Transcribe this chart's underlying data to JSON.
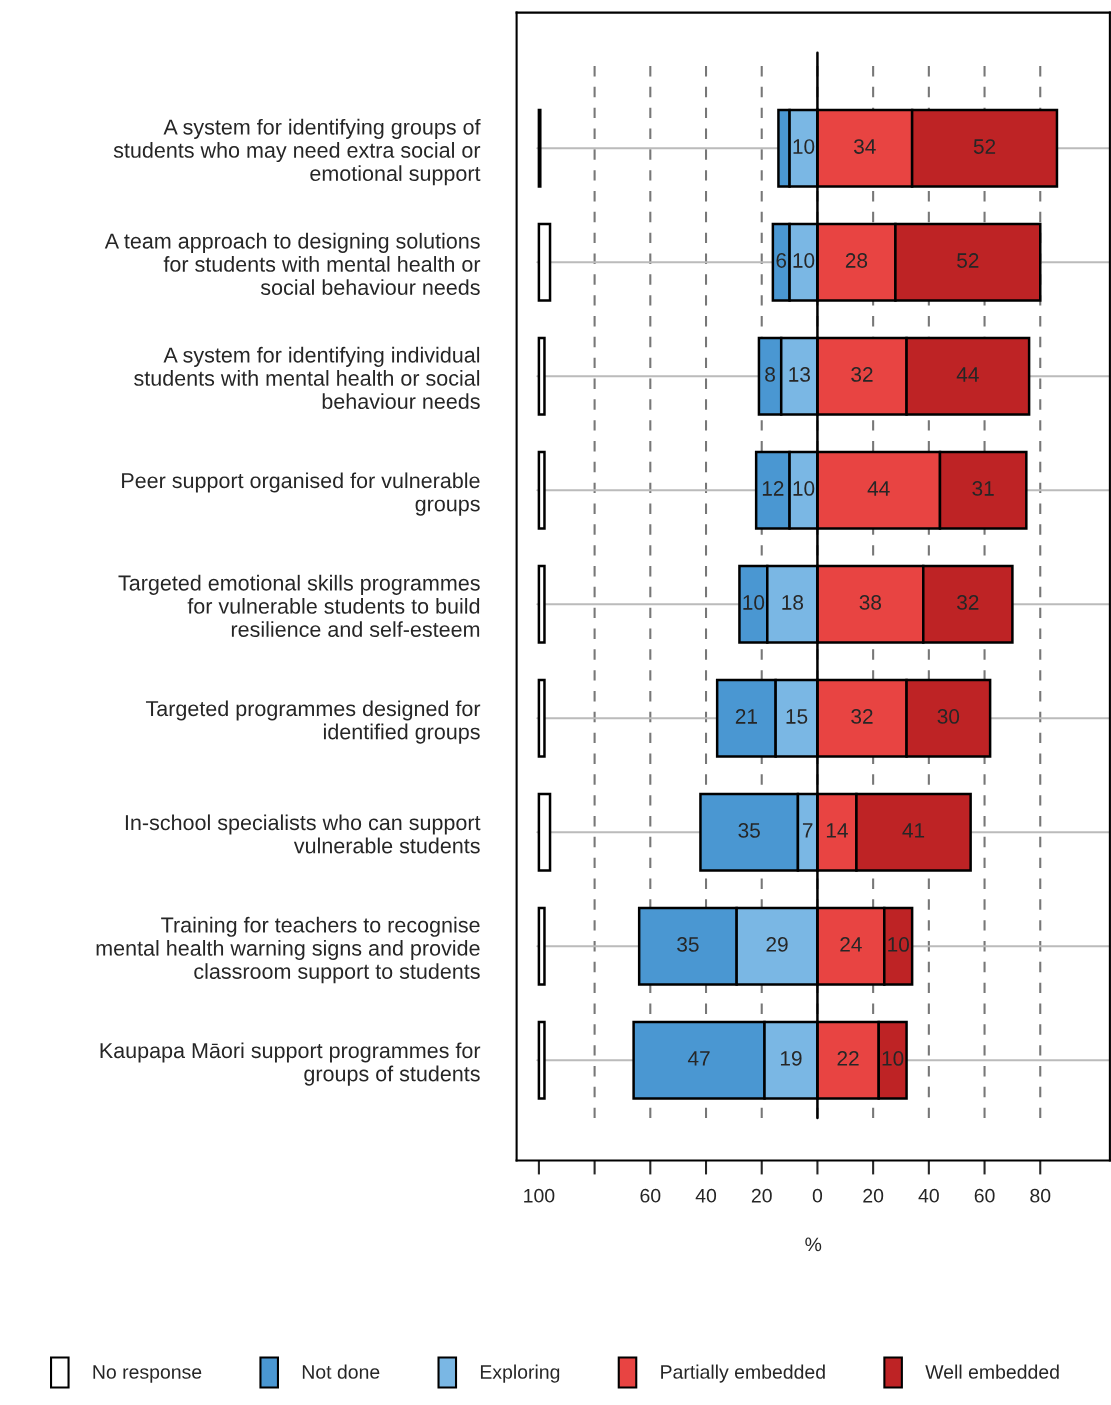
{
  "chart_data": {
    "type": "bar",
    "orientation": "horizontal",
    "xlabel": "%",
    "categories": [
      "A system for identifying groups of\nstudents who may need extra social or\nemotional support",
      "A team approach to designing solutions\nfor students with mental health or\nsocial behaviour needs",
      "A system for identifying individual\nstudents with mental health or social\nbehaviour needs",
      "Peer support organised for vulnerable\ngroups",
      "Targeted emotional skills programmes\nfor vulnerable students to build\nresilience and self-esteem",
      "Targeted programmes designed for\nidentified groups",
      "In-school specialists who can support\nvulnerable students",
      "Training for teachers to recognise\nmental health warning signs and provide\nclassroom support to students",
      "Kaupapa Māori support programmes for\ngroups of students"
    ],
    "series": [
      {
        "name": "No response",
        "color": "#ffffff",
        "values": [
          0.5,
          4,
          2,
          2,
          2,
          2,
          4,
          2,
          2
        ],
        "base": [
          -100,
          -100,
          -100,
          -100,
          -100,
          -100,
          -100,
          -100,
          -100
        ]
      },
      {
        "name": "Not done",
        "color": "#4a97d2",
        "values": [
          4,
          6,
          8,
          12,
          10,
          21,
          35,
          35,
          47
        ],
        "base": [
          -14,
          -16,
          -21,
          -22,
          -28,
          -36,
          -42,
          -64,
          -66
        ],
        "value_labels": [
          null,
          "6",
          "8",
          "12",
          "10",
          "21",
          "35",
          "35",
          "47"
        ]
      },
      {
        "name": "Exploring",
        "color": "#7ab7e4",
        "values": [
          10,
          10,
          13,
          10,
          18,
          15,
          7,
          29,
          19
        ],
        "base": [
          -10,
          -10,
          -13,
          -10,
          -18,
          -15,
          -7,
          -29,
          -19
        ],
        "value_labels": [
          "10",
          "10",
          "13",
          "10",
          "18",
          "15",
          "7",
          "29",
          "19"
        ]
      },
      {
        "name": "Partially embedded",
        "color": "#e84442",
        "values": [
          34,
          28,
          32,
          44,
          38,
          32,
          14,
          24,
          22
        ],
        "base": [
          0,
          0,
          0,
          0,
          0,
          0,
          0,
          0,
          0
        ],
        "value_labels": [
          "34",
          "28",
          "32",
          "44",
          "38",
          "32",
          "14",
          "24",
          "22"
        ]
      },
      {
        "name": "Well embedded",
        "color": "#be2325",
        "values": [
          52,
          52,
          44,
          31,
          32,
          30,
          41,
          10,
          10
        ],
        "base": [
          34,
          28,
          32,
          44,
          38,
          32,
          14,
          24,
          22
        ],
        "value_labels": [
          "52",
          "52",
          "44",
          "31",
          "32",
          "30",
          "41",
          "10",
          "10"
        ]
      }
    ],
    "xlim": [
      -108,
      105
    ],
    "xticks": [
      {
        "value": -100,
        "label": "100"
      },
      {
        "value": -80,
        "label": null
      },
      {
        "value": -60,
        "label": "60"
      },
      {
        "value": -40,
        "label": "40"
      },
      {
        "value": -20,
        "label": "20"
      },
      0,
      20,
      40,
      60,
      80
    ],
    "ref_lines": [
      {
        "axis": "x",
        "value": 0,
        "color": "#000000",
        "line_style": "solid"
      }
    ],
    "grid": true,
    "legend": "bottom"
  }
}
